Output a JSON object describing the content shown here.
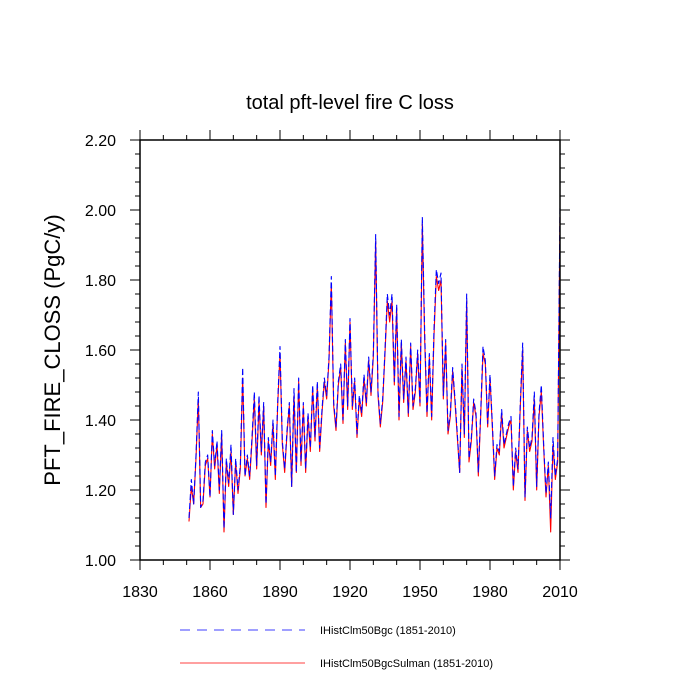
{
  "chart_data": {
    "type": "line",
    "title": "total pft-level fire C loss",
    "xlabel": "",
    "ylabel": "PFT_FIRE_CLOSS  (PgC/y)",
    "xlim": [
      1830,
      2010
    ],
    "ylim": [
      1.0,
      2.2
    ],
    "xticks": [
      1830,
      1860,
      1890,
      1920,
      1950,
      1980,
      2010
    ],
    "yticks": [
      1.0,
      1.2,
      1.4,
      1.6,
      1.8,
      2.0,
      2.2
    ],
    "xtick_labels": [
      "1830",
      "1860",
      "1890",
      "1920",
      "1950",
      "1980",
      "2010"
    ],
    "ytick_labels": [
      "1.00",
      "1.20",
      "1.40",
      "1.60",
      "1.80",
      "2.00",
      "2.20"
    ],
    "grid": false,
    "legend_position": "bottom",
    "x_start": 1851,
    "series": [
      {
        "name": "IHistClm50Bgc (1851-2010)",
        "color": "#0000ff",
        "style": "dashed",
        "values": [
          1.12,
          1.23,
          1.16,
          1.3,
          1.48,
          1.15,
          1.17,
          1.28,
          1.3,
          1.18,
          1.37,
          1.27,
          1.34,
          1.2,
          1.37,
          1.09,
          1.29,
          1.22,
          1.33,
          1.13,
          1.29,
          1.2,
          1.27,
          1.55,
          1.24,
          1.3,
          1.24,
          1.35,
          1.48,
          1.27,
          1.47,
          1.31,
          1.45,
          1.16,
          1.35,
          1.28,
          1.4,
          1.24,
          1.45,
          1.61,
          1.34,
          1.26,
          1.37,
          1.45,
          1.21,
          1.49,
          1.25,
          1.52,
          1.28,
          1.45,
          1.26,
          1.42,
          1.32,
          1.5,
          1.35,
          1.51,
          1.32,
          1.43,
          1.52,
          1.47,
          1.58,
          1.81,
          1.45,
          1.38,
          1.51,
          1.56,
          1.4,
          1.63,
          1.44,
          1.69,
          1.44,
          1.52,
          1.36,
          1.47,
          1.42,
          1.53,
          1.45,
          1.58,
          1.48,
          1.59,
          1.93,
          1.48,
          1.39,
          1.46,
          1.6,
          1.76,
          1.7,
          1.76,
          1.51,
          1.73,
          1.41,
          1.63,
          1.46,
          1.58,
          1.42,
          1.62,
          1.44,
          1.49,
          1.6,
          1.45,
          1.98,
          1.65,
          1.42,
          1.59,
          1.41,
          1.66,
          1.83,
          1.79,
          1.82,
          1.47,
          1.63,
          1.37,
          1.42,
          1.55,
          1.46,
          1.36,
          1.25,
          1.56,
          1.36,
          1.76,
          1.29,
          1.35,
          1.46,
          1.42,
          1.25,
          1.42,
          1.61,
          1.57,
          1.39,
          1.53,
          1.39,
          1.24,
          1.33,
          1.31,
          1.43,
          1.33,
          1.36,
          1.39,
          1.41,
          1.21,
          1.32,
          1.26,
          1.45,
          1.62,
          1.18,
          1.38,
          1.32,
          1.35,
          1.48,
          1.21,
          1.42,
          1.5,
          1.33,
          1.19,
          1.28,
          1.12,
          1.35,
          1.24,
          1.29,
          2.01
        ]
      },
      {
        "name": "IHistClm50BgcSulman (1851-2010)",
        "color": "#ff0000",
        "style": "solid",
        "values": [
          1.11,
          1.21,
          1.16,
          1.29,
          1.46,
          1.15,
          1.16,
          1.27,
          1.29,
          1.18,
          1.36,
          1.26,
          1.33,
          1.19,
          1.36,
          1.08,
          1.28,
          1.21,
          1.31,
          1.13,
          1.28,
          1.19,
          1.26,
          1.52,
          1.24,
          1.29,
          1.23,
          1.34,
          1.46,
          1.26,
          1.45,
          1.3,
          1.44,
          1.15,
          1.34,
          1.27,
          1.39,
          1.23,
          1.44,
          1.59,
          1.33,
          1.25,
          1.36,
          1.44,
          1.21,
          1.47,
          1.25,
          1.51,
          1.27,
          1.44,
          1.25,
          1.41,
          1.31,
          1.49,
          1.34,
          1.5,
          1.31,
          1.42,
          1.51,
          1.46,
          1.57,
          1.79,
          1.44,
          1.37,
          1.5,
          1.55,
          1.39,
          1.62,
          1.43,
          1.68,
          1.43,
          1.51,
          1.35,
          1.46,
          1.41,
          1.52,
          1.44,
          1.57,
          1.47,
          1.58,
          1.91,
          1.47,
          1.38,
          1.45,
          1.59,
          1.74,
          1.68,
          1.74,
          1.5,
          1.72,
          1.4,
          1.62,
          1.45,
          1.57,
          1.41,
          1.61,
          1.43,
          1.48,
          1.59,
          1.44,
          1.96,
          1.63,
          1.41,
          1.58,
          1.4,
          1.64,
          1.81,
          1.77,
          1.8,
          1.46,
          1.62,
          1.36,
          1.41,
          1.54,
          1.45,
          1.35,
          1.25,
          1.55,
          1.35,
          1.74,
          1.28,
          1.34,
          1.45,
          1.41,
          1.24,
          1.41,
          1.59,
          1.56,
          1.38,
          1.52,
          1.38,
          1.23,
          1.32,
          1.3,
          1.42,
          1.32,
          1.35,
          1.38,
          1.4,
          1.2,
          1.31,
          1.25,
          1.44,
          1.6,
          1.17,
          1.37,
          1.31,
          1.34,
          1.46,
          1.2,
          1.41,
          1.48,
          1.32,
          1.18,
          1.27,
          1.08,
          1.33,
          1.23,
          1.28,
          1.98
        ]
      }
    ]
  }
}
